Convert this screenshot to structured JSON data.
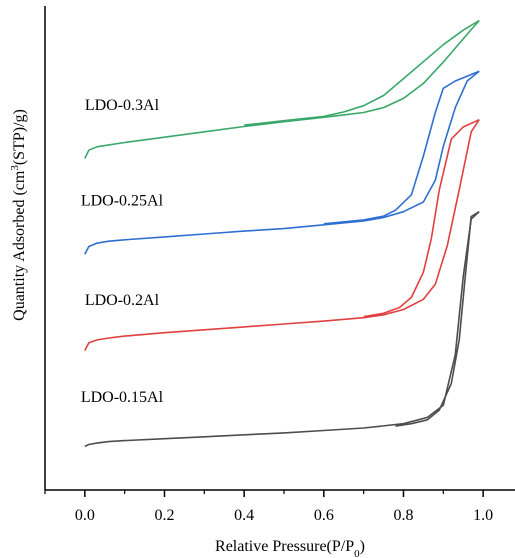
{
  "chart_data": {
    "type": "line",
    "title": "",
    "xlabel": "Relative Pressure(P/P0)",
    "xlabel_parts": {
      "main": "Relative Pressure(P/P",
      "sub": "0",
      "end": ")"
    },
    "ylabel": "Quantity Adsorbed (cm3(STP)/g)",
    "ylabel_parts": {
      "pre": "Quantity Adsorbed (cm",
      "sup": "3",
      "post": "(STP)/g)"
    },
    "xlim": [
      -0.1,
      1.08
    ],
    "xticks": [
      "0.0",
      "0.2",
      "0.4",
      "0.6",
      "0.8",
      "1.0"
    ],
    "xtick_values": [
      0.0,
      0.2,
      0.4,
      0.6,
      0.8,
      1.0
    ],
    "y_ticks_shown": false,
    "ylim": [
      0,
      100
    ],
    "legend": "labels next to curves",
    "grid": false,
    "series": [
      {
        "name": "LDO-0.3Al",
        "color": "#3aa86b",
        "adsorption": {
          "x": [
            0.0,
            0.01,
            0.03,
            0.06,
            0.1,
            0.2,
            0.3,
            0.4,
            0.5,
            0.6,
            0.65,
            0.7,
            0.75,
            0.8,
            0.85,
            0.9,
            0.95,
            0.99
          ],
          "y": [
            68.5,
            70.2,
            70.9,
            71.3,
            71.8,
            72.9,
            74.0,
            75.1,
            76.1,
            77.0,
            77.5,
            78.0,
            79.0,
            80.9,
            84.0,
            88.4,
            93.2,
            97.0
          ]
        },
        "desorption": {
          "x": [
            0.99,
            0.95,
            0.9,
            0.85,
            0.8,
            0.75,
            0.7,
            0.65,
            0.6,
            0.5,
            0.4
          ],
          "y": [
            97.0,
            95.0,
            92.0,
            88.5,
            85.0,
            81.5,
            79.4,
            78.1,
            77.2,
            76.3,
            75.4
          ]
        }
      },
      {
        "name": "LDO-0.25Al",
        "color": "#2f6fd1",
        "adsorption": {
          "x": [
            0.0,
            0.01,
            0.03,
            0.06,
            0.1,
            0.2,
            0.3,
            0.4,
            0.5,
            0.6,
            0.7,
            0.75,
            0.8,
            0.85,
            0.88,
            0.9,
            0.93,
            0.96,
            0.99
          ],
          "y": [
            48.7,
            50.3,
            51.0,
            51.4,
            51.7,
            52.3,
            52.9,
            53.5,
            54.0,
            54.8,
            55.6,
            56.3,
            57.5,
            59.5,
            64.0,
            71.0,
            79.0,
            84.5,
            86.5
          ]
        },
        "desorption": {
          "x": [
            0.99,
            0.93,
            0.9,
            0.88,
            0.85,
            0.82,
            0.78,
            0.75,
            0.7,
            0.6
          ],
          "y": [
            86.5,
            84.5,
            83.0,
            78.0,
            69.0,
            61.0,
            57.8,
            56.6,
            55.8,
            55.0
          ]
        }
      },
      {
        "name": "LDO-0.2Al",
        "color": "#e0403f",
        "adsorption": {
          "x": [
            0.0,
            0.01,
            0.03,
            0.06,
            0.1,
            0.2,
            0.3,
            0.4,
            0.5,
            0.6,
            0.7,
            0.75,
            0.8,
            0.85,
            0.88,
            0.91,
            0.94,
            0.97,
            0.99
          ],
          "y": [
            28.8,
            30.4,
            31.0,
            31.4,
            31.8,
            32.5,
            33.1,
            33.7,
            34.3,
            34.9,
            35.6,
            36.2,
            37.3,
            39.4,
            42.5,
            50.5,
            62.0,
            74.0,
            76.5
          ]
        },
        "desorption": {
          "x": [
            0.99,
            0.95,
            0.92,
            0.89,
            0.87,
            0.85,
            0.82,
            0.79,
            0.75,
            0.7
          ],
          "y": [
            76.5,
            75.0,
            72.5,
            62.0,
            52.0,
            45.0,
            39.8,
            37.7,
            36.5,
            35.8
          ]
        }
      },
      {
        "name": "LDO-0.15Al",
        "color": "#4d4d4d",
        "adsorption": {
          "x": [
            0.0,
            0.01,
            0.03,
            0.06,
            0.1,
            0.2,
            0.3,
            0.4,
            0.5,
            0.6,
            0.7,
            0.8,
            0.86,
            0.9,
            0.93,
            0.95,
            0.97,
            0.99
          ],
          "y": [
            9.0,
            9.4,
            9.7,
            10.0,
            10.2,
            10.6,
            11.0,
            11.4,
            11.8,
            12.3,
            12.8,
            13.7,
            15.0,
            17.5,
            28.0,
            44.0,
            56.0,
            57.5
          ]
        },
        "desorption": {
          "x": [
            0.99,
            0.97,
            0.955,
            0.94,
            0.92,
            0.89,
            0.86,
            0.82,
            0.78
          ],
          "y": [
            57.5,
            56.5,
            44.0,
            31.0,
            22.0,
            16.5,
            14.5,
            13.7,
            13.2
          ]
        }
      }
    ],
    "label_positions_data": [
      {
        "name": "LDO-0.3Al",
        "x": 0.0,
        "y": 78.5
      },
      {
        "name": "LDO-0.25Al",
        "x": -0.01,
        "y": 58.8
      },
      {
        "name": "LDO-0.2Al",
        "x": 0.0,
        "y": 38.2
      },
      {
        "name": "LDO-0.15Al",
        "x": -0.01,
        "y": 18.2
      }
    ]
  }
}
